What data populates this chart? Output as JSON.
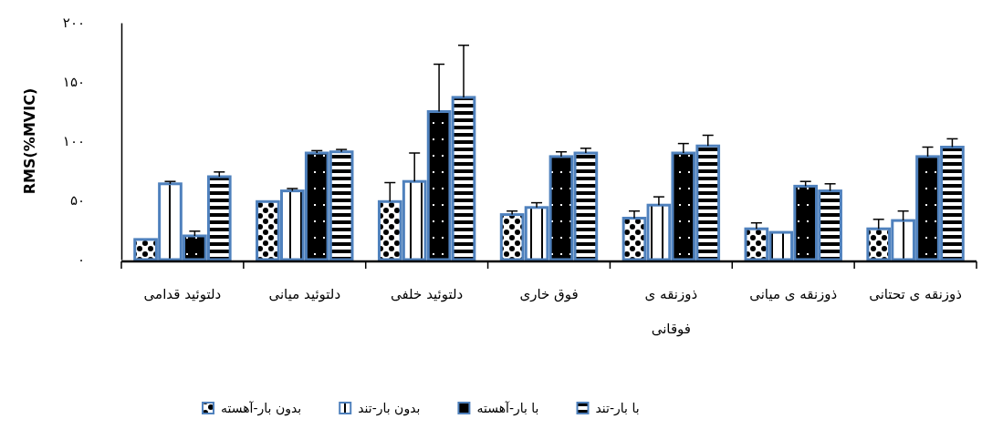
{
  "chart_data": {
    "type": "bar",
    "ylabel": "RMS(%MVIC)",
    "categories": [
      "دلتوئید قدامی",
      "دلتوئید میانی",
      "دلتوئید خلفی",
      "فوق خاری",
      "ذوزنقه ی فوقانی",
      "ذوزنقه ی میانی",
      "ذوزنقه ی تحتانی"
    ],
    "series": [
      {
        "name": "بدون بار-آهسته",
        "color": "#4f81bd",
        "values": [
          17,
          49,
          49,
          38,
          35,
          26,
          26
        ],
        "errors": [
          null,
          null,
          16,
          3,
          6,
          5,
          8
        ]
      },
      {
        "name": "بدون بار-تند",
        "color": "#4f81bd",
        "values": [
          64,
          58,
          66,
          44,
          46,
          23,
          33
        ],
        "errors": [
          2,
          2,
          24,
          4,
          7,
          null,
          8
        ]
      },
      {
        "name": "با بار-آهسته",
        "color": "#4f81bd",
        "values": [
          20,
          90,
          125,
          87,
          90,
          62,
          87
        ],
        "errors": [
          4,
          2,
          40,
          4,
          8,
          4,
          8
        ]
      },
      {
        "name": "با بار-تند",
        "color": "#4f81bd",
        "values": [
          70,
          91,
          137,
          90,
          96,
          58,
          95
        ],
        "errors": [
          4,
          2,
          44,
          4,
          9,
          6,
          7
        ]
      }
    ],
    "ylim": [
      0,
      200
    ],
    "yticks": [
      {
        "value": 0,
        "label": "۰"
      },
      {
        "value": 50,
        "label": "۵۰"
      },
      {
        "value": 100,
        "label": "۱۰۰"
      },
      {
        "value": 150,
        "label": "۱۵۰"
      },
      {
        "value": 200,
        "label": "۲۰۰"
      }
    ],
    "legend": "bottom"
  }
}
